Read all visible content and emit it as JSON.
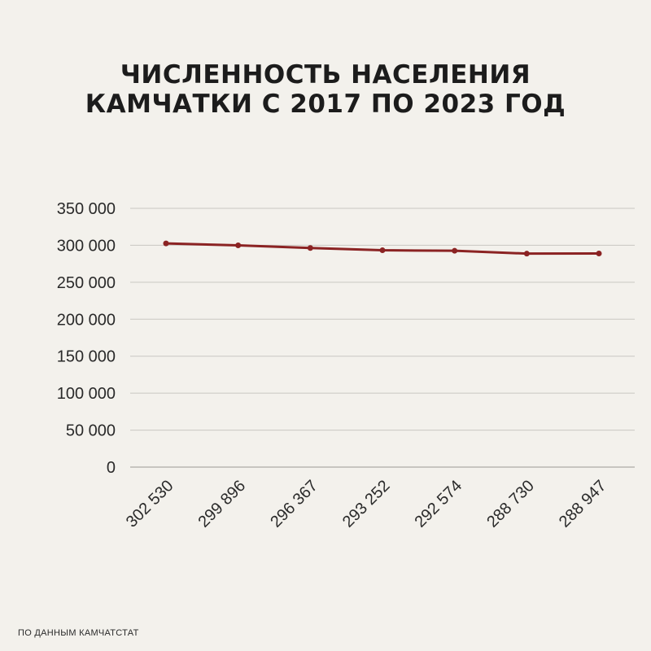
{
  "title_lines": [
    "ЧИСЛЕННОСТЬ НАСЕЛЕНИЯ",
    "КАМЧАТКИ С 2017 ПО 2023 ГОД"
  ],
  "source": "ПО ДАННЫМ КАМЧАТСТАТ",
  "chart_data": {
    "type": "line",
    "title": "ЧИСЛЕННОСТЬ НАСЕЛЕНИЯ КАМЧАТКИ С 2017 ПО 2023 ГОД",
    "categories": [
      "302 530",
      "299 896",
      "296 367",
      "293 252",
      "292 574",
      "288 730",
      "288 947"
    ],
    "values": [
      302530,
      299896,
      296367,
      293252,
      292574,
      288730,
      288947
    ],
    "ylim": [
      0,
      350000
    ],
    "yticks": [
      0,
      50000,
      100000,
      150000,
      200000,
      250000,
      300000,
      350000
    ],
    "ytick_labels": [
      "0",
      "50 000",
      "100 000",
      "150 000",
      "200 000",
      "250 000",
      "300 000",
      "350 000"
    ],
    "grid": true,
    "legend": "none",
    "line_color": "#8b2323"
  }
}
